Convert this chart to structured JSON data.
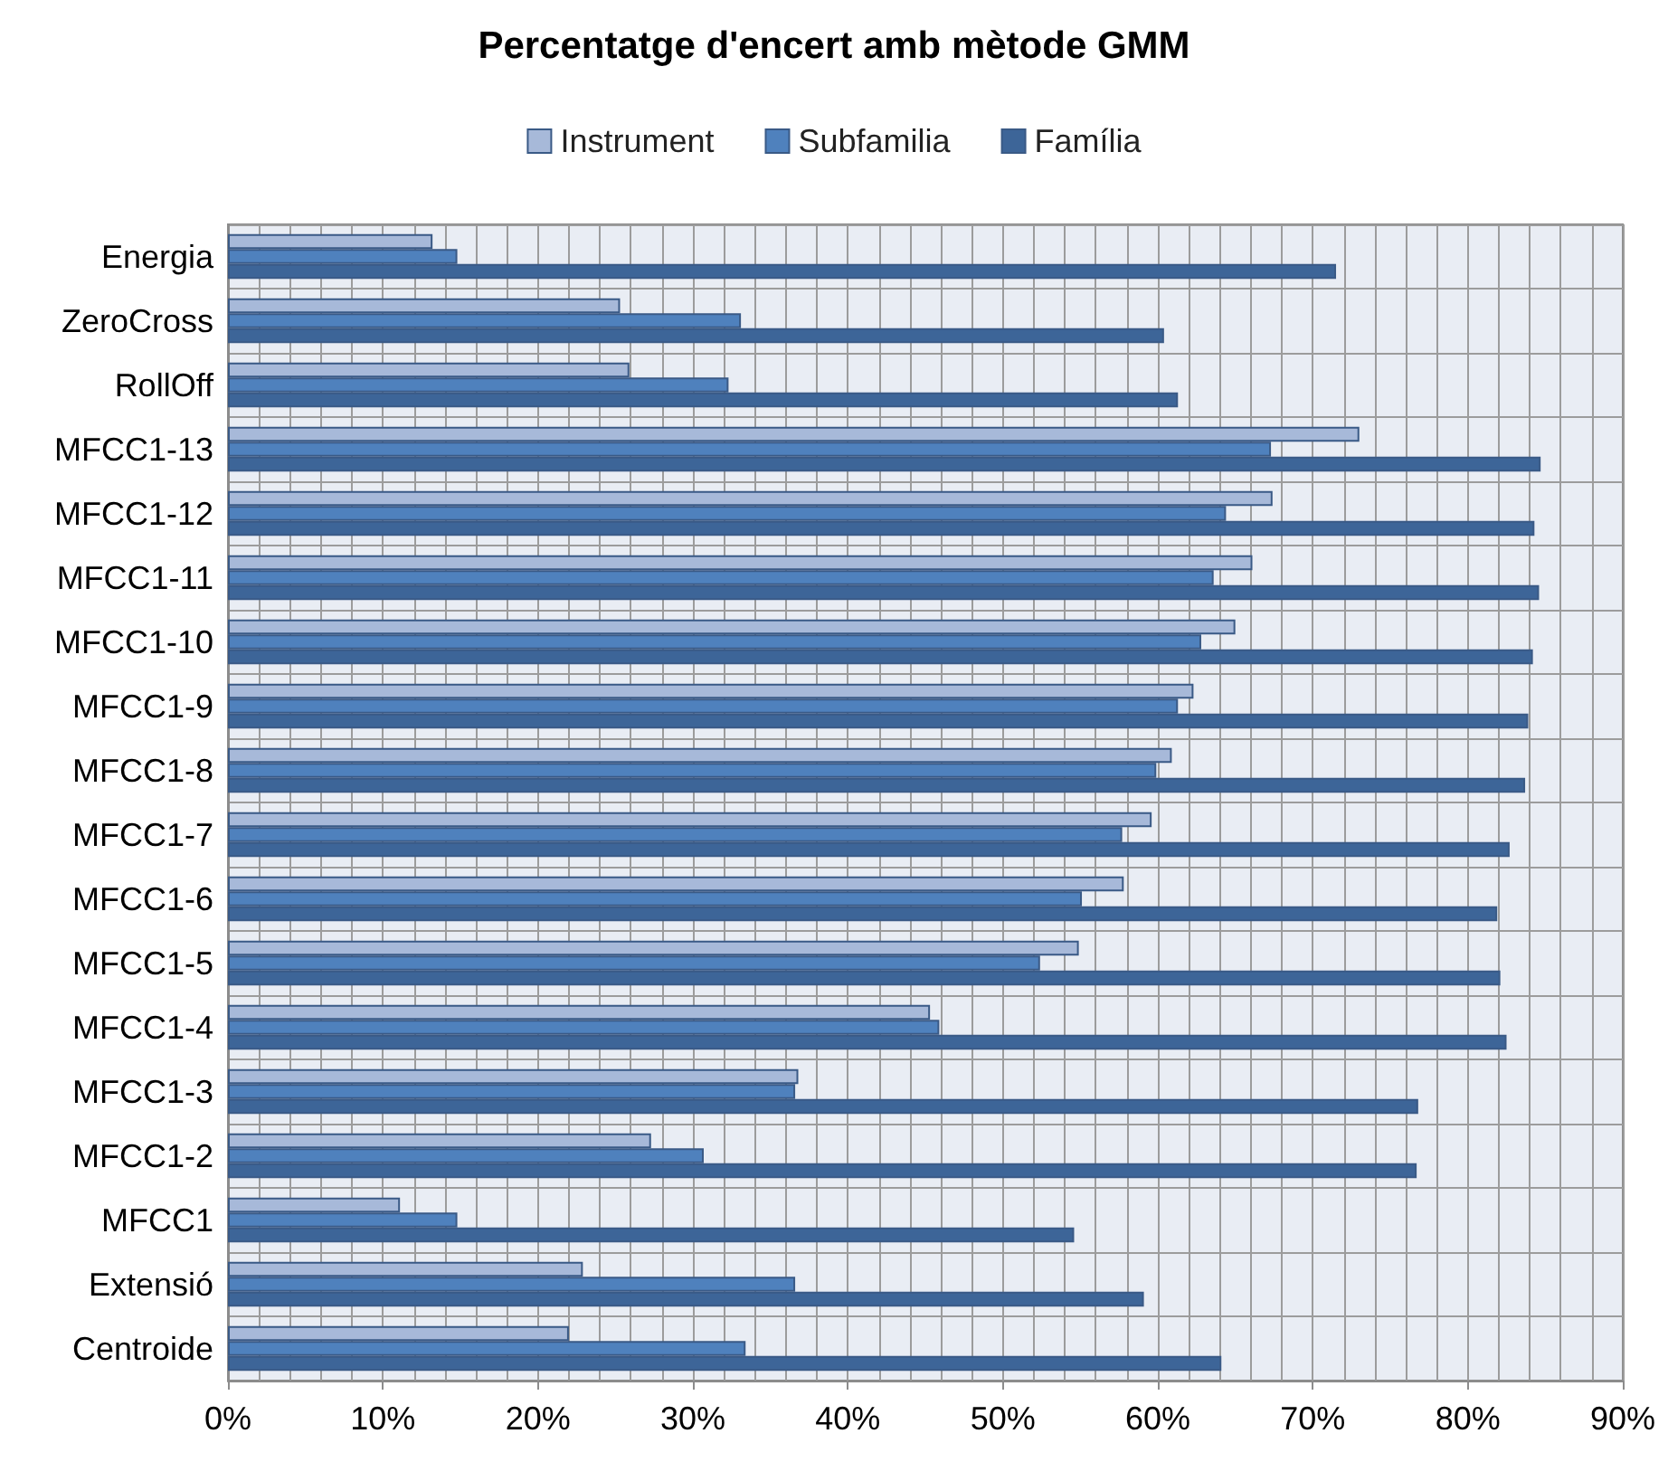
{
  "chart_data": {
    "type": "bar",
    "orientation": "horizontal",
    "title": "Percentatge d'encert amb mètode GMM",
    "categories": [
      "Energia",
      "ZeroCross",
      "RollOff",
      "MFCC1-13",
      "MFCC1-12",
      "MFCC1-11",
      "MFCC1-10",
      "MFCC1-9",
      "MFCC1-8",
      "MFCC1-7",
      "MFCC1-6",
      "MFCC1-5",
      "MFCC1-4",
      "MFCC1-3",
      "MFCC1-2",
      "MFCC1",
      "Extensió",
      "Centroide"
    ],
    "series": [
      {
        "name": "Instrument",
        "color": "#a7b9d9",
        "values": [
          13.2,
          25.3,
          25.9,
          73.0,
          67.4,
          66.1,
          65.0,
          62.3,
          60.9,
          59.6,
          57.8,
          54.9,
          45.3,
          36.8,
          27.3,
          11.1,
          22.9,
          22.0
        ]
      },
      {
        "name": "Subfamilia",
        "color": "#4f81bd",
        "values": [
          14.8,
          33.1,
          32.3,
          67.3,
          64.4,
          63.6,
          62.8,
          61.3,
          59.9,
          57.7,
          55.1,
          52.4,
          45.9,
          36.6,
          30.7,
          14.8,
          36.6,
          33.4
        ]
      },
      {
        "name": "Família",
        "color": "#3d6598",
        "values": [
          71.5,
          60.4,
          61.3,
          84.7,
          84.3,
          84.6,
          84.2,
          83.9,
          83.7,
          82.7,
          81.9,
          82.1,
          82.5,
          76.8,
          76.7,
          54.6,
          59.1,
          64.1
        ]
      }
    ],
    "xlim": [
      0,
      90
    ],
    "xticks": [
      {
        "value": 0,
        "label": "0%"
      },
      {
        "value": 2,
        "label": null
      },
      {
        "value": 4,
        "label": null
      },
      {
        "value": 6,
        "label": null
      },
      {
        "value": 8,
        "label": null
      },
      {
        "value": 10,
        "label": "10%"
      },
      {
        "value": 12,
        "label": null
      },
      {
        "value": 14,
        "label": null
      },
      {
        "value": 16,
        "label": null
      },
      {
        "value": 18,
        "label": null
      },
      {
        "value": 20,
        "label": "20%"
      },
      {
        "value": 22,
        "label": null
      },
      {
        "value": 24,
        "label": null
      },
      {
        "value": 26,
        "label": null
      },
      {
        "value": 28,
        "label": null
      },
      {
        "value": 30,
        "label": "30%"
      },
      {
        "value": 32,
        "label": null
      },
      {
        "value": 34,
        "label": null
      },
      {
        "value": 36,
        "label": null
      },
      {
        "value": 38,
        "label": null
      },
      {
        "value": 40,
        "label": "40%"
      },
      {
        "value": 42,
        "label": null
      },
      {
        "value": 44,
        "label": null
      },
      {
        "value": 46,
        "label": null
      },
      {
        "value": 48,
        "label": null
      },
      {
        "value": 50,
        "label": "50%"
      },
      {
        "value": 52,
        "label": null
      },
      {
        "value": 54,
        "label": null
      },
      {
        "value": 56,
        "label": null
      },
      {
        "value": 58,
        "label": null
      },
      {
        "value": 60,
        "label": "60%"
      },
      {
        "value": 62,
        "label": null
      },
      {
        "value": 64,
        "label": null
      },
      {
        "value": 66,
        "label": null
      },
      {
        "value": 68,
        "label": null
      },
      {
        "value": 70,
        "label": "70%"
      },
      {
        "value": 72,
        "label": null
      },
      {
        "value": 74,
        "label": null
      },
      {
        "value": 76,
        "label": null
      },
      {
        "value": 78,
        "label": null
      },
      {
        "value": 80,
        "label": "80%"
      },
      {
        "value": 82,
        "label": null
      },
      {
        "value": 84,
        "label": null
      },
      {
        "value": 86,
        "label": null
      },
      {
        "value": 88,
        "label": null
      },
      {
        "value": 90,
        "label": "90%"
      }
    ],
    "grid": true,
    "legend": "top"
  }
}
